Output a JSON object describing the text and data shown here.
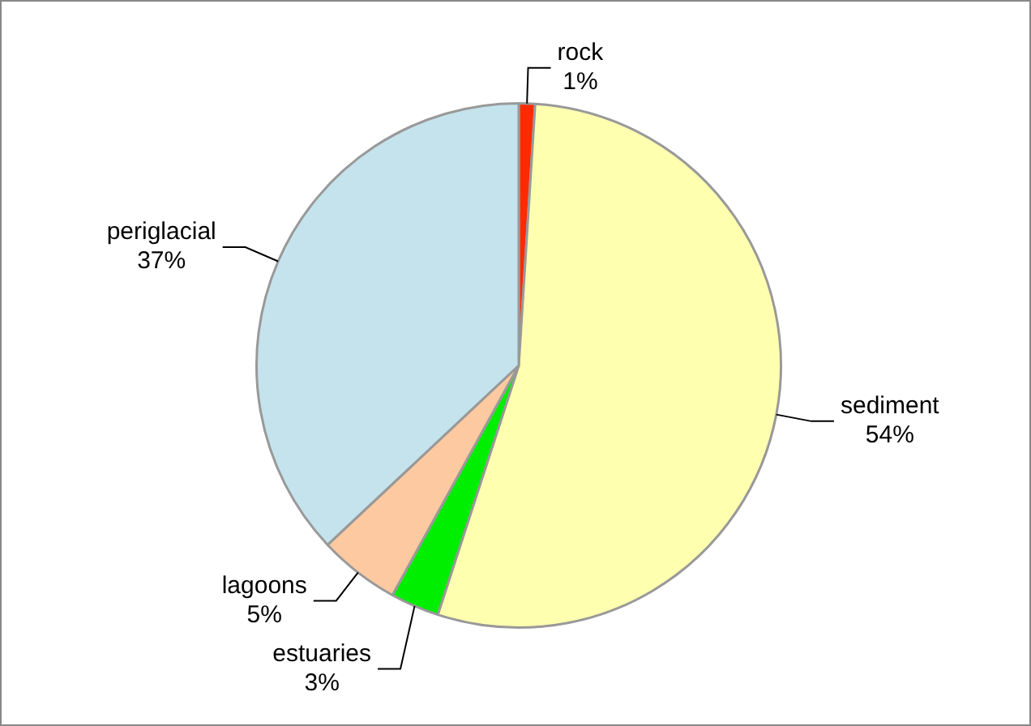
{
  "chart_data": {
    "type": "pie",
    "categories": [
      "rock",
      "sediment",
      "estuaries",
      "lagoons",
      "periglacial"
    ],
    "values": [
      1,
      54,
      3,
      5,
      37
    ],
    "value_labels": [
      "1%",
      "54%",
      "3%",
      "5%",
      "37%"
    ],
    "colors": [
      "#ff2a00",
      "#ffffb0",
      "#00ee00",
      "#fcc9a0",
      "#c5e3ec"
    ],
    "legend": false
  }
}
